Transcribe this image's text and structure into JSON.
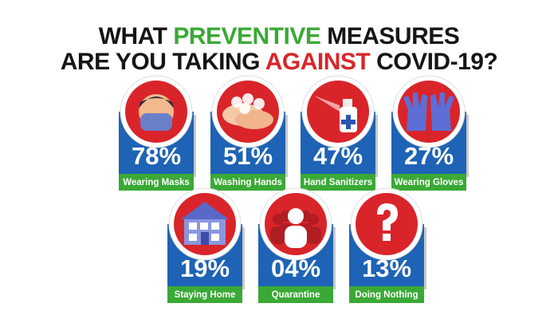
{
  "title": {
    "line1": [
      "WHAT",
      "PREVENTIVE",
      "MEASURES"
    ],
    "line2": [
      "ARE YOU TAKING",
      "AGAINST",
      "COVID-19?"
    ]
  },
  "items": [
    {
      "value": "78%",
      "label": "Wearing Masks"
    },
    {
      "value": "51%",
      "label": "Washing Hands"
    },
    {
      "value": "47%",
      "label": "Hand Sanitizers"
    },
    {
      "value": "27%",
      "label": "Wearing Gloves"
    },
    {
      "value": "19%",
      "label": "Staying Home"
    },
    {
      "value": "04%",
      "label": "Quarantine"
    },
    {
      "value": "13%",
      "label": "Doing Nothing"
    }
  ]
}
